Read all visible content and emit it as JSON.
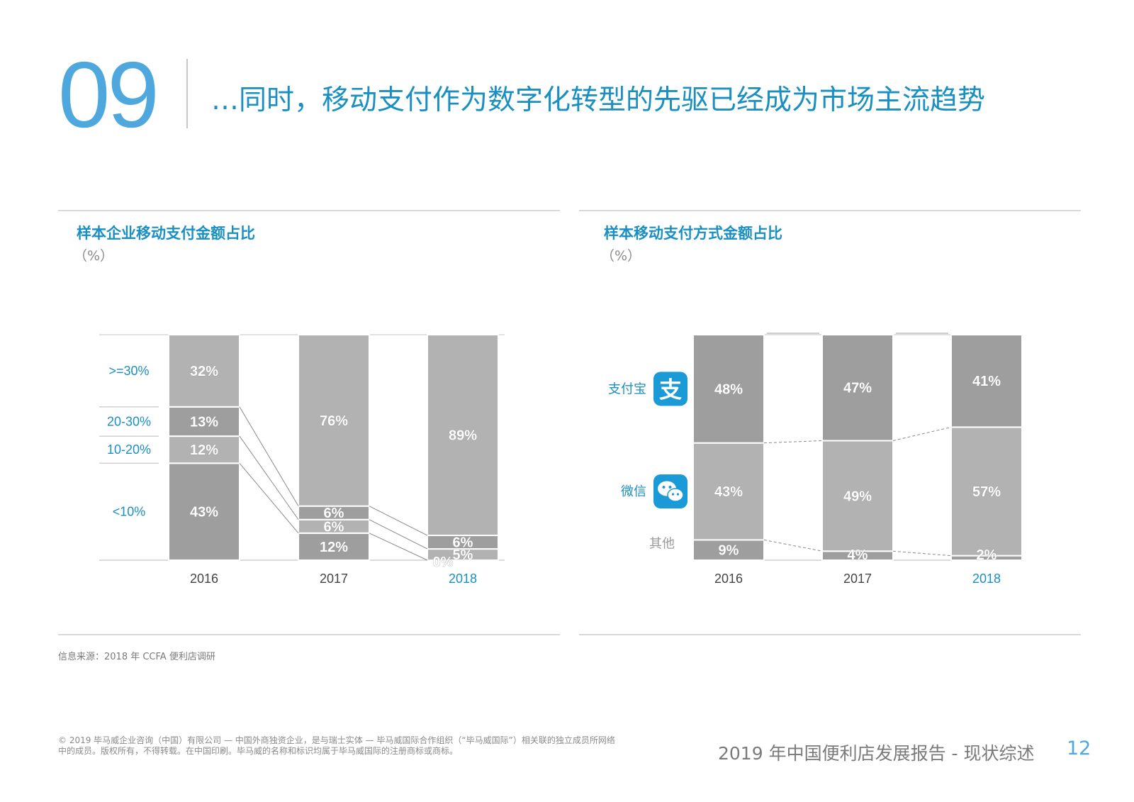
{
  "page_number": "09",
  "headline": "…同时，移动支付作为数字化转型的先驱已经成为市场主流趋势",
  "left_panel": {
    "title": "样本企业移动支付金额占比",
    "unit": "（%）"
  },
  "right_panel": {
    "title": "样本移动支付方式金额占比",
    "unit": "（%）"
  },
  "source": "信息来源：2018 年 CCFA 便利店调研",
  "copyright": "© 2019 毕马威企业咨询（中国）有限公司 — 中国外商独资企业，是与瑞士实体 — 毕马威国际合作组织（“毕马威国际”）相关联的独立成员所网络中的成员。版权所有，不得转载。在中国印刷。毕马威的名称和标识均属于毕马威国际的注册商标或商标。",
  "footer": {
    "report_title": "2019 年中国便利店发展报告 - 现状综述",
    "page": "12"
  },
  "colors": {
    "accent": "#1a8fc1",
    "title_blue": "#4ea8de",
    "seg_light": "#b2b2b2",
    "seg_dark": "#9e9e9e"
  },
  "chart_data": [
    {
      "type": "bar",
      "stacked": true,
      "percent": true,
      "categories": [
        "2016",
        "2017",
        "2018"
      ],
      "highlight_category": "2018",
      "series": [
        {
          "name": "<10%",
          "values": [
            43,
            12,
            0
          ]
        },
        {
          "name": "10-20%",
          "values": [
            12,
            6,
            5
          ]
        },
        {
          "name": "20-30%",
          "values": [
            13,
            6,
            6
          ]
        },
        {
          "name": ">=30%",
          "values": [
            32,
            76,
            89
          ]
        }
      ],
      "ylim": [
        0,
        100
      ]
    },
    {
      "type": "bar",
      "stacked": true,
      "percent": true,
      "categories": [
        "2016",
        "2017",
        "2018"
      ],
      "highlight_category": "2018",
      "series": [
        {
          "name": "其他",
          "icon": null,
          "values": [
            9,
            4,
            2
          ]
        },
        {
          "name": "微信",
          "icon": "wechat-icon",
          "values": [
            43,
            49,
            57
          ]
        },
        {
          "name": "支付宝",
          "icon": "alipay-icon",
          "values": [
            48,
            47,
            41
          ]
        }
      ],
      "ylim": [
        0,
        100
      ]
    }
  ]
}
